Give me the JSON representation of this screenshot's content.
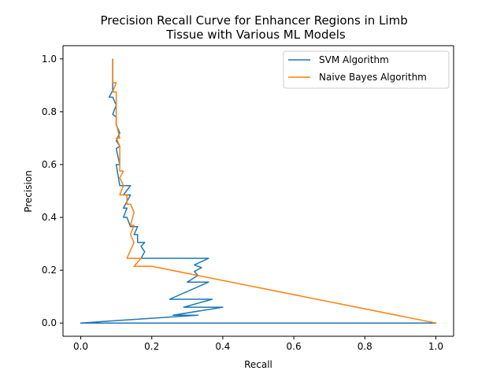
{
  "chart_data": {
    "type": "line",
    "title": "Precision Recall Curve for Enhancer Regions in Limb\nTissue with Various ML Models",
    "xlabel": "Recall",
    "ylabel": "Precision",
    "xlim": [
      -0.05,
      1.05
    ],
    "ylim": [
      -0.05,
      1.05
    ],
    "xticks": [
      0.0,
      0.2,
      0.4,
      0.6,
      0.8,
      1.0
    ],
    "yticks": [
      0.0,
      0.2,
      0.4,
      0.6,
      0.8,
      1.0
    ],
    "xtick_labels": [
      "0.0",
      "0.2",
      "0.4",
      "0.6",
      "0.8",
      "1.0"
    ],
    "ytick_labels": [
      "0.0",
      "0.2",
      "0.4",
      "0.6",
      "0.8",
      "1.0"
    ],
    "grid": false,
    "legend_position": "top-right",
    "series": [
      {
        "name": "SVM Algorithm",
        "color": "#1f77b4",
        "points": [
          [
            0.0,
            0.0
          ],
          [
            1.0,
            0.0
          ],
          [
            0.0,
            0.0
          ],
          [
            0.33,
            0.03
          ],
          [
            0.26,
            0.03
          ],
          [
            0.4,
            0.06
          ],
          [
            0.29,
            0.06
          ],
          [
            0.37,
            0.09
          ],
          [
            0.25,
            0.09
          ],
          [
            0.36,
            0.155
          ],
          [
            0.3,
            0.155
          ],
          [
            0.33,
            0.18
          ],
          [
            0.32,
            0.195
          ],
          [
            0.34,
            0.21
          ],
          [
            0.32,
            0.22
          ],
          [
            0.36,
            0.245
          ],
          [
            0.17,
            0.245
          ],
          [
            0.18,
            0.27
          ],
          [
            0.17,
            0.29
          ],
          [
            0.18,
            0.305
          ],
          [
            0.16,
            0.305
          ],
          [
            0.16,
            0.335
          ],
          [
            0.15,
            0.335
          ],
          [
            0.16,
            0.365
          ],
          [
            0.14,
            0.365
          ],
          [
            0.13,
            0.4
          ],
          [
            0.12,
            0.4
          ],
          [
            0.13,
            0.435
          ],
          [
            0.12,
            0.435
          ],
          [
            0.14,
            0.485
          ],
          [
            0.12,
            0.485
          ],
          [
            0.14,
            0.52
          ],
          [
            0.11,
            0.52
          ],
          [
            0.1,
            0.6
          ],
          [
            0.11,
            0.6
          ],
          [
            0.1,
            0.66
          ],
          [
            0.11,
            0.67
          ],
          [
            0.1,
            0.69
          ],
          [
            0.11,
            0.72
          ],
          [
            0.1,
            0.75
          ],
          [
            0.1,
            0.78
          ],
          [
            0.09,
            0.79
          ],
          [
            0.1,
            0.825
          ],
          [
            0.09,
            0.855
          ],
          [
            0.08,
            0.855
          ],
          [
            0.09,
            0.88
          ],
          [
            0.09,
            1.0
          ]
        ]
      },
      {
        "name": "Naive Bayes Algorithm",
        "color": "#ff7f0e",
        "points": [
          [
            1.0,
            0.0
          ],
          [
            0.2,
            0.215
          ],
          [
            0.15,
            0.215
          ],
          [
            0.17,
            0.245
          ],
          [
            0.13,
            0.245
          ],
          [
            0.14,
            0.275
          ],
          [
            0.15,
            0.305
          ],
          [
            0.14,
            0.335
          ],
          [
            0.15,
            0.37
          ],
          [
            0.14,
            0.37
          ],
          [
            0.15,
            0.42
          ],
          [
            0.14,
            0.45
          ],
          [
            0.13,
            0.45
          ],
          [
            0.13,
            0.485
          ],
          [
            0.11,
            0.485
          ],
          [
            0.12,
            0.52
          ],
          [
            0.11,
            0.55
          ],
          [
            0.12,
            0.575
          ],
          [
            0.11,
            0.575
          ],
          [
            0.11,
            0.67
          ],
          [
            0.1,
            0.7
          ],
          [
            0.11,
            0.7
          ],
          [
            0.1,
            0.755
          ],
          [
            0.1,
            0.84
          ],
          [
            0.1,
            0.875
          ],
          [
            0.09,
            0.875
          ],
          [
            0.1,
            0.91
          ],
          [
            0.09,
            0.91
          ],
          [
            0.09,
            1.0
          ]
        ]
      }
    ]
  }
}
